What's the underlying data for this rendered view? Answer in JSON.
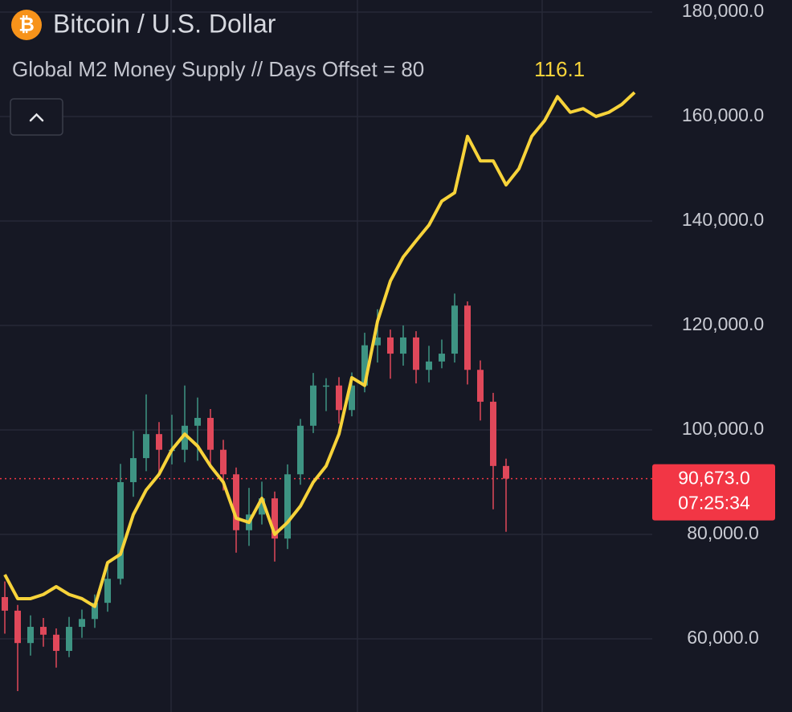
{
  "chart_data": {
    "type": "candlestick",
    "symbol_icon": "₿",
    "title": "Bitcoin / U.S. Dollar",
    "categories": [
      null,
      null,
      null,
      null,
      null,
      null,
      null,
      null,
      null,
      null,
      null,
      null,
      null,
      null,
      null,
      null,
      null,
      null,
      null,
      null,
      null,
      null,
      null,
      null,
      null,
      null,
      null,
      null,
      null,
      null,
      null,
      null,
      null,
      null,
      null,
      null,
      null,
      null,
      null,
      null,
      null,
      null,
      null,
      null,
      null,
      null,
      null,
      null,
      null,
      null
    ],
    "ylim": [
      46000,
      182300
    ],
    "yticks": [
      {
        "value": 60000,
        "label": "60,000.0"
      },
      {
        "value": 80000,
        "label": "80,000.0"
      },
      {
        "value": 100000,
        "label": "100,000.0"
      },
      {
        "value": 120000,
        "label": "120,000.0"
      },
      {
        "value": 140000,
        "label": "140,000.0"
      },
      {
        "value": 160000,
        "label": "160,000.0"
      },
      {
        "value": 180000,
        "label": "180,000.0"
      }
    ],
    "grid": true,
    "series": [
      {
        "type": "candlestick",
        "up_color": "#3e9483",
        "down_color": "#e0485a",
        "open": [
          68000,
          65400,
          59200,
          62300,
          60800,
          57700,
          62300,
          63800,
          66900,
          71500,
          90000,
          94600,
          99200,
          96200,
          96200,
          100800,
          102300,
          96200,
          91500,
          80800,
          83800,
          86900,
          79200,
          91500,
          100800,
          108500,
          108500,
          103800,
          108500,
          116200,
          117700,
          114600,
          117700,
          111500,
          113100,
          114600,
          123800,
          111500,
          105400,
          93100,
          null,
          null,
          null,
          null,
          null,
          null,
          null,
          null,
          null,
          null
        ],
        "high": [
          71000,
          66500,
          64500,
          64000,
          62000,
          64200,
          65600,
          68500,
          74000,
          93500,
          99800,
          106800,
          101500,
          102900,
          108500,
          106200,
          104000,
          98100,
          92800,
          88900,
          90100,
          88200,
          93400,
          102100,
          110900,
          109900,
          110100,
          111000,
          118600,
          123100,
          119200,
          120000,
          118900,
          116100,
          117300,
          126100,
          124600,
          113300,
          107100,
          94500,
          null,
          null,
          null,
          null,
          null,
          null,
          null,
          null,
          null,
          null
        ],
        "low": [
          61000,
          50000,
          56800,
          58500,
          54500,
          56500,
          60200,
          62100,
          65200,
          70400,
          87200,
          92100,
          91800,
          93400,
          93800,
          94100,
          93200,
          88400,
          76500,
          77800,
          81900,
          74800,
          77200,
          89500,
          99400,
          103600,
          101200,
          102600,
          107200,
          112900,
          109800,
          112300,
          108900,
          109100,
          111800,
          112900,
          108700,
          101800,
          84800,
          80500,
          null,
          null,
          null,
          null,
          null,
          null,
          null,
          null,
          null,
          null
        ],
        "close": [
          65400,
          59200,
          62300,
          60800,
          57700,
          62300,
          63800,
          66900,
          71500,
          90000,
          94600,
          99200,
          96200,
          96200,
          100800,
          102300,
          96200,
          91500,
          80800,
          83800,
          86900,
          79200,
          91500,
          100800,
          108500,
          108500,
          103800,
          108500,
          116200,
          117700,
          114600,
          117700,
          111500,
          113100,
          114600,
          123800,
          111500,
          105400,
          93100,
          90673,
          null,
          null,
          null,
          null,
          null,
          null,
          null,
          null,
          null,
          null
        ]
      },
      {
        "type": "line",
        "name": "Global M2 Money Supply // Days Offset = 80",
        "color": "#f7d33a",
        "last_value": 116.1,
        "values": [
          72300,
          67700,
          67700,
          68500,
          70000,
          68500,
          67700,
          66200,
          74600,
          76200,
          83800,
          88500,
          91500,
          96200,
          99200,
          96900,
          93100,
          90000,
          83100,
          82300,
          86900,
          80000,
          82300,
          85400,
          90000,
          93100,
          99200,
          110000,
          108500,
          120800,
          128500,
          133100,
          136200,
          139200,
          143800,
          145400,
          156200,
          151500,
          151500,
          146900,
          150000,
          156200,
          159200,
          163800,
          160800,
          161500,
          160000,
          160800,
          162300,
          164600
        ]
      }
    ],
    "last_price": {
      "value": 90673,
      "label": "90,673.0"
    },
    "countdown": "07:25:34",
    "price_line_color": "#f23645"
  }
}
